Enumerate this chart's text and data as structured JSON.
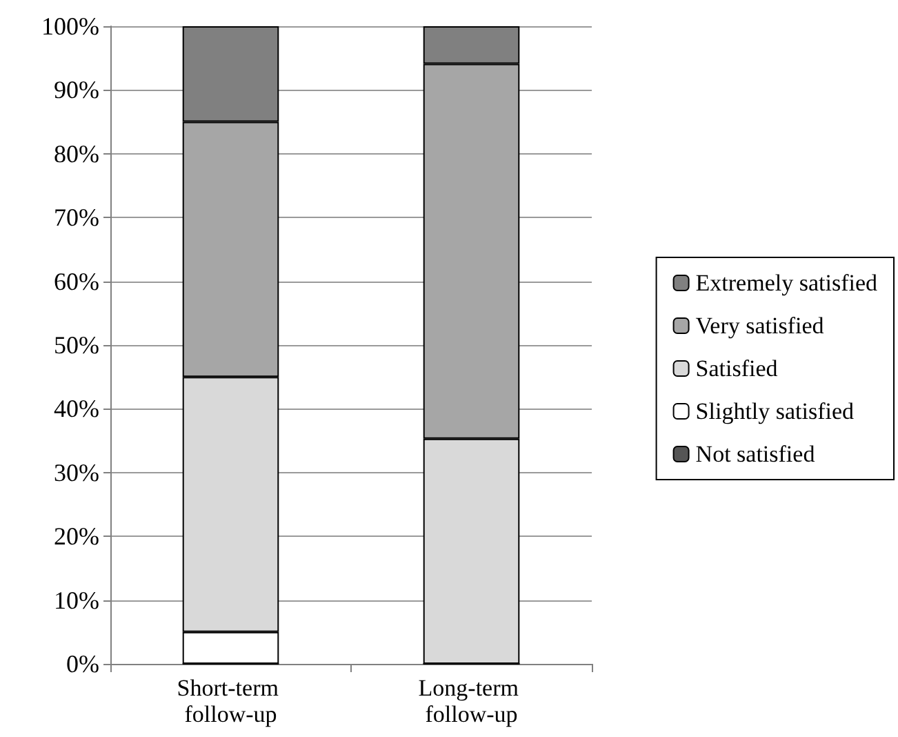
{
  "chart_data": {
    "type": "bar",
    "stacked": true,
    "categories": [
      "Short-term follow-up",
      "Long-term follow-up"
    ],
    "series": [
      {
        "name": "Not satisfied",
        "color": "#555555",
        "values": [
          0,
          0
        ]
      },
      {
        "name": "Slightly satisfied",
        "color": "#ffffff",
        "values": [
          5,
          0
        ]
      },
      {
        "name": "Satisfied",
        "color": "#d9d9d9",
        "values": [
          40,
          35.3
        ]
      },
      {
        "name": "Very satisfied",
        "color": "#a6a6a6",
        "values": [
          40,
          58.8
        ]
      },
      {
        "name": "Extremely satisfied",
        "color": "#808080",
        "values": [
          15,
          5.9
        ]
      }
    ],
    "ylim": [
      0,
      100
    ],
    "yticks": [
      {
        "value": 0,
        "label": "0%"
      },
      {
        "value": 10,
        "label": "10%"
      },
      {
        "value": 20,
        "label": "20%"
      },
      {
        "value": 30,
        "label": "30%"
      },
      {
        "value": 40,
        "label": "40%"
      },
      {
        "value": 50,
        "label": "50%"
      },
      {
        "value": 60,
        "label": "60%"
      },
      {
        "value": 70,
        "label": "70%"
      },
      {
        "value": 80,
        "label": "80%"
      },
      {
        "value": 90,
        "label": "90%"
      },
      {
        "value": 100,
        "label": "100%"
      }
    ],
    "grid": "y",
    "legend": "right"
  }
}
